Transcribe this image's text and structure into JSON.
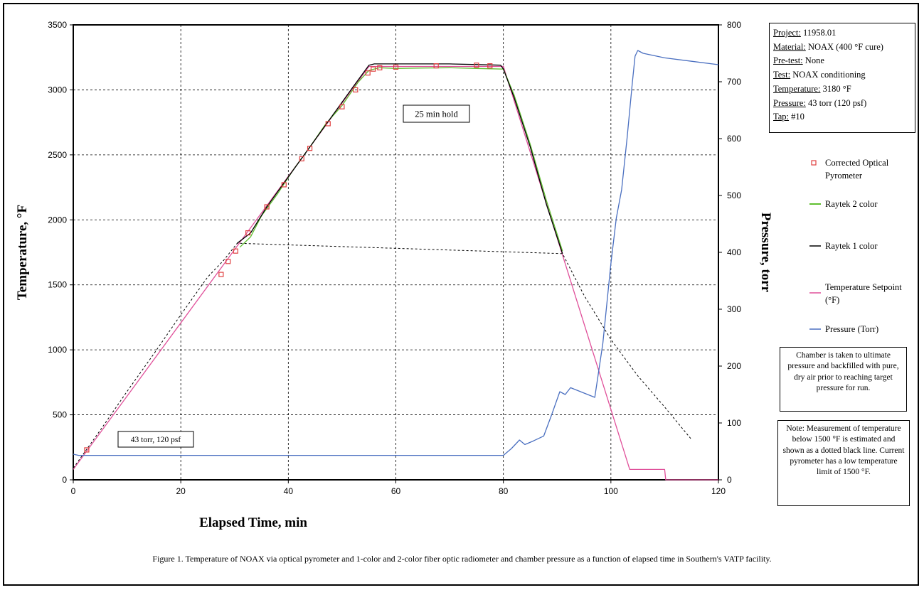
{
  "info_box": [
    {
      "key": "Project:",
      "value": " 11958.01"
    },
    {
      "key": "Material:",
      "value": "  NOAX (400 °F cure)"
    },
    {
      "key": "Pre-test:",
      "value": " None"
    },
    {
      "key": "Test:",
      "value": " NOAX conditioning"
    },
    {
      "key": "Temperature:",
      "value": " 3180 °F"
    },
    {
      "key": "Pressure:",
      "value": " 43 torr (120 psf)"
    },
    {
      "key": "Tap:",
      "value": " #10"
    }
  ],
  "legend": [
    {
      "label": "Corrected Optical Pyrometer",
      "color": "#e04040",
      "style": "square"
    },
    {
      "label": "Raytek 2 color",
      "color": "#5fbf2f",
      "style": "line"
    },
    {
      "label": "Raytek 1 color",
      "color": "#000000",
      "style": "line"
    },
    {
      "label": "Temperature Setpoint (°F)",
      "color": "#e0509a",
      "style": "line"
    },
    {
      "label": "Pressure (Torr)",
      "color": "#4a6fc0",
      "style": "line"
    }
  ],
  "notes": {
    "chamber": "Chamber is taken to ultimate pressure and backfilled with pure, dry air prior to reaching target pressure for run.",
    "measurement": "Note: Measurement of temperature below 1500 °F is estimated and shown as a dotted black line.  Current pyrometer has a low temperature limit of 1500 °F."
  },
  "annotations": {
    "hold": "25 min hold",
    "pressure": "43 torr, 120 psf"
  },
  "caption": "Figure 1.  Temperature of NOAX via optical pyrometer and 1-color and 2-color fiber optic radiometer and chamber pressure as a function of elapsed time in Southern's VATP facility.",
  "chart_data": {
    "type": "line",
    "xlabel": "Elapsed Time, min",
    "ylabel": "Temperature, °F",
    "y2label": "Pressure, torr",
    "xlim": [
      0,
      120
    ],
    "ylim": [
      0,
      3500
    ],
    "y2lim": [
      0,
      800
    ],
    "x_ticks": [
      0,
      20,
      40,
      60,
      80,
      100,
      120
    ],
    "y_ticks": [
      0,
      500,
      1000,
      1500,
      2000,
      2500,
      3000,
      3500
    ],
    "y2_ticks": [
      0,
      100,
      200,
      300,
      400,
      500,
      600,
      700,
      800
    ],
    "grid": true,
    "series": [
      {
        "name": "Corrected Optical Pyrometer",
        "axis": "left",
        "marker": "square",
        "color": "#e04040",
        "x": [
          2.5,
          27.5,
          28.8,
          30.2,
          32.5,
          36,
          39.2,
          42.5,
          44,
          47.4,
          50,
          52.5,
          54.8,
          55.8,
          57,
          60,
          67.5,
          75,
          77.5
        ],
        "y": [
          230,
          1580,
          1680,
          1760,
          1900,
          2100,
          2270,
          2470,
          2550,
          2740,
          2870,
          3000,
          3130,
          3160,
          3170,
          3175,
          3185,
          3190,
          3185
        ]
      },
      {
        "name": "Raytek 2 color",
        "axis": "left",
        "color": "#5fbf2f",
        "x": [
          31,
          33,
          35,
          38,
          41,
          44,
          47,
          50,
          53,
          55,
          57,
          60,
          65,
          70,
          75,
          80,
          82,
          85,
          88,
          91
        ],
        "y": [
          1790,
          1870,
          2030,
          2200,
          2390,
          2560,
          2740,
          2880,
          3060,
          3150,
          3170,
          3165,
          3168,
          3170,
          3165,
          3160,
          2960,
          2580,
          2150,
          1760
        ]
      },
      {
        "name": "Raytek 1 color",
        "axis": "left",
        "color": "#000000",
        "x": [
          30.5,
          33,
          36,
          40,
          44,
          48,
          52,
          55,
          56,
          60,
          65,
          70,
          75,
          79.5,
          80,
          82,
          85,
          88,
          91
        ],
        "y": [
          1820,
          1900,
          2100,
          2330,
          2560,
          2790,
          3020,
          3190,
          3200,
          3200,
          3200,
          3200,
          3195,
          3190,
          3160,
          2940,
          2560,
          2120,
          1740
        ]
      },
      {
        "name": "Raytek 1 color (estimated)",
        "axis": "left",
        "color": "#000000",
        "dashed": true,
        "x": [
          0,
          5,
          10,
          15,
          20,
          25,
          28,
          30.5,
          91,
          95,
          100,
          105,
          110,
          115
        ],
        "y": [
          90,
          380,
          680,
          970,
          1270,
          1560,
          1690,
          1820,
          1740,
          1420,
          1080,
          800,
          560,
          310
        ]
      },
      {
        "name": "Temperature Setpoint (°F)",
        "axis": "left",
        "color": "#e0509a",
        "x": [
          0,
          55,
          80,
          103.5,
          110,
          110.2,
          120
        ],
        "y": [
          80,
          3180,
          3180,
          80,
          80,
          0,
          0
        ]
      },
      {
        "name": "Pressure (Torr)",
        "axis": "right",
        "color": "#4a6fc0",
        "x": [
          0,
          1,
          80,
          81.5,
          83,
          84,
          85.5,
          87.5,
          89,
          90.5,
          91.5,
          92.5,
          97,
          98.5,
          100,
          101,
          102,
          103,
          104,
          104.5,
          105,
          106,
          110,
          115,
          120
        ],
        "y": [
          45,
          43,
          43,
          55,
          70,
          62,
          68,
          77,
          115,
          155,
          150,
          162,
          145,
          240,
          380,
          460,
          510,
          600,
          700,
          745,
          755,
          750,
          742,
          736,
          730
        ]
      }
    ]
  }
}
